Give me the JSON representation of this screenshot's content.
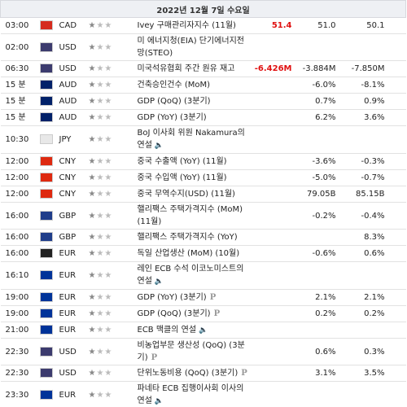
{
  "header": {
    "date": "2022년 12월 7일 수요일"
  },
  "rows": [
    {
      "time": "03:00",
      "currency": "CAD",
      "flag": "#d52b1e",
      "event": "Ivey 구매관리자지수 (11월)",
      "actual": "51.4",
      "forecast": "51.0",
      "previous": "50.1"
    },
    {
      "time": "02:00",
      "currency": "USD",
      "flag": "#3c3b6e",
      "event": "미 에너지청(EIA) 단기에너지전망(STEO)",
      "actual": null,
      "forecast": null,
      "previous": null
    },
    {
      "time": "06:30",
      "currency": "USD",
      "flag": "#3c3b6e",
      "event": "미국석유협회 주간 원유 재고",
      "actual": "-6.426M",
      "forecast": "-3.884M",
      "previous": "-7.850M"
    },
    {
      "time": "15 분",
      "currency": "AUD",
      "flag": "#012169",
      "event": "건축승인건수 (MoM)",
      "actual": null,
      "forecast": "-6.0%",
      "previous": "-8.1%"
    },
    {
      "time": "15 분",
      "currency": "AUD",
      "flag": "#012169",
      "event": "GDP (QoQ) (3분기)",
      "actual": null,
      "forecast": "0.7%",
      "previous": "0.9%"
    },
    {
      "time": "15 분",
      "currency": "AUD",
      "flag": "#012169",
      "event": "GDP (YoY) (3분기)",
      "actual": null,
      "forecast": "6.2%",
      "previous": "3.6%"
    },
    {
      "time": "10:30",
      "currency": "JPY",
      "flag": "#e8e8e8",
      "event": "BoJ 이사회 위원 Nakamura의 연설",
      "speech": true,
      "actual": null,
      "forecast": null,
      "previous": null
    },
    {
      "time": "12:00",
      "currency": "CNY",
      "flag": "#de2910",
      "event": "중국 수출액 (YoY) (11월)",
      "actual": null,
      "forecast": "-3.6%",
      "previous": "-0.3%"
    },
    {
      "time": "12:00",
      "currency": "CNY",
      "flag": "#de2910",
      "event": "중국 수입액 (YoY) (11월)",
      "actual": null,
      "forecast": "-5.0%",
      "previous": "-0.7%"
    },
    {
      "time": "12:00",
      "currency": "CNY",
      "flag": "#de2910",
      "event": "중국 무역수지(USD) (11월)",
      "actual": null,
      "forecast": "79.05B",
      "previous": "85.15B"
    },
    {
      "time": "16:00",
      "currency": "GBP",
      "flag": "#1f3d8a",
      "event": "핼리팩스 주택가격지수 (MoM) (11월)",
      "actual": null,
      "forecast": "-0.2%",
      "previous": "-0.4%"
    },
    {
      "time": "16:00",
      "currency": "GBP",
      "flag": "#1f3d8a",
      "event": "핼리팩스 주택가격지수 (YoY)",
      "actual": null,
      "forecast": null,
      "previous": "8.3%"
    },
    {
      "time": "16:00",
      "currency": "EUR",
      "flag": "#222222",
      "event": "독일 산업생산 (MoM) (10월)",
      "actual": null,
      "forecast": "-0.6%",
      "previous": "0.6%"
    },
    {
      "time": "16:10",
      "currency": "EUR",
      "flag": "#003399",
      "event": "레인 ECB 수석 이코노미스트의 연설",
      "speech": true,
      "actual": null,
      "forecast": null,
      "previous": null
    },
    {
      "time": "19:00",
      "currency": "EUR",
      "flag": "#003399",
      "event": "GDP (YoY) (3분기)",
      "note": "P",
      "actual": null,
      "forecast": "2.1%",
      "previous": "2.1%"
    },
    {
      "time": "19:00",
      "currency": "EUR",
      "flag": "#003399",
      "event": "GDP (QoQ) (3분기)",
      "note": "P",
      "actual": null,
      "forecast": "0.2%",
      "previous": "0.2%"
    },
    {
      "time": "21:00",
      "currency": "EUR",
      "flag": "#003399",
      "event": "ECB 맥클의 연설",
      "speech": true,
      "actual": null,
      "forecast": null,
      "previous": null
    },
    {
      "time": "22:30",
      "currency": "USD",
      "flag": "#3c3b6e",
      "event": "비농업부문 생산성 (QoQ) (3분기)",
      "note": "P",
      "actual": null,
      "forecast": "0.6%",
      "previous": "0.3%"
    },
    {
      "time": "22:30",
      "currency": "USD",
      "flag": "#3c3b6e",
      "event": "단위노동비용 (QoQ) (3분기)",
      "note": "P",
      "actual": null,
      "forecast": "3.1%",
      "previous": "3.5%"
    },
    {
      "time": "23:30",
      "currency": "EUR",
      "flag": "#003399",
      "event": "파네타 ECB 집행이사회 이사의 연설",
      "speech": true,
      "actual": null,
      "forecast": null,
      "previous": null
    }
  ]
}
